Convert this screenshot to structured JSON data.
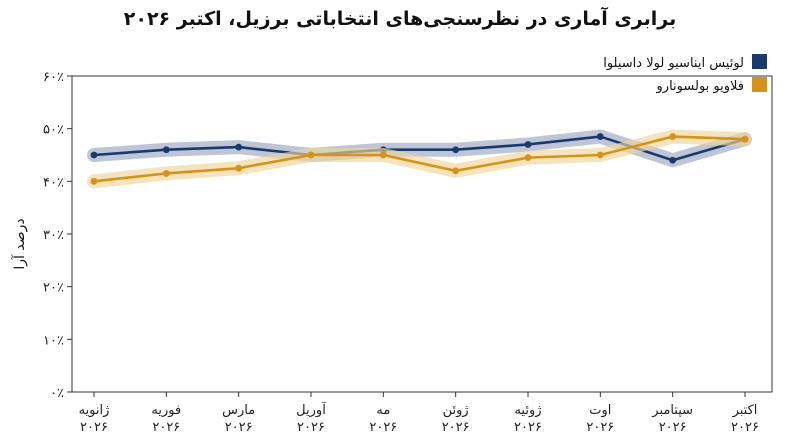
{
  "chart_data": {
    "type": "line",
    "title": "برابری آماری در نظرسنجی‌های انتخاباتی برزیل، اکتبر ۲۰۲۶",
    "xlabel": "",
    "ylabel": "درصد آرا",
    "ylim": [
      0,
      60
    ],
    "yticks": [
      "۰٪",
      "۱۰٪",
      "۲۰٪",
      "۳۰٪",
      "۴۰٪",
      "۵۰٪",
      "۶۰٪"
    ],
    "categories": [
      [
        "ژانویه",
        "۲۰۲۶"
      ],
      [
        "فوریه",
        "۲۰۲۶"
      ],
      [
        "مارس",
        "۲۰۲۶"
      ],
      [
        "آوریل",
        "۲۰۲۶"
      ],
      [
        "مه",
        "۲۰۲۶"
      ],
      [
        "ژوئن",
        "۲۰۲۶"
      ],
      [
        "ژوئیه",
        "۲۰۲۶"
      ],
      [
        "اوت",
        "۲۰۲۶"
      ],
      [
        "سپتامبر",
        "۲۰۲۶"
      ],
      [
        "اکتبر",
        "۲۰۲۶"
      ]
    ],
    "grid": false,
    "legend_position": "top-right",
    "series": [
      {
        "name": "لوئیس ایناسیو لولا داسیلوا",
        "color": "#1b3a6b",
        "band_color": "#9aa6c2",
        "values": [
          45,
          46,
          46.5,
          45,
          46,
          46,
          47,
          48.5,
          44,
          48
        ]
      },
      {
        "name": "فلاویو بولسونارو",
        "color": "#d4941c",
        "band_color": "#f0d49a",
        "values": [
          40,
          41.5,
          42.5,
          45,
          45,
          42,
          44.5,
          45,
          48.5,
          48
        ]
      }
    ]
  }
}
